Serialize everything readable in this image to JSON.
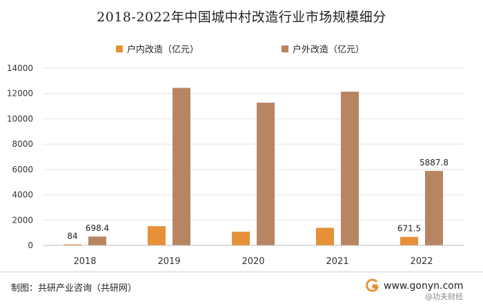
{
  "chart_data": {
    "type": "bar",
    "title": "2018-2022年中国城中村改造行业市场规模细分",
    "categories": [
      "2018",
      "2019",
      "2020",
      "2021",
      "2022"
    ],
    "series": [
      {
        "name": "户内改造（亿元）",
        "color": "#E69138",
        "values": [
          84,
          1520,
          1080,
          1390,
          671.5
        ]
      },
      {
        "name": "户外改造（亿元）",
        "color": "#B88563",
        "values": [
          698.4,
          12450,
          11280,
          12150,
          5887.8
        ]
      }
    ],
    "data_labels": [
      {
        "series": 0,
        "index": 0,
        "text": "84"
      },
      {
        "series": 1,
        "index": 0,
        "text": "698.4"
      },
      {
        "series": 0,
        "index": 4,
        "text": "671.5"
      },
      {
        "series": 1,
        "index": 4,
        "text": "5887.8"
      }
    ],
    "yticks": [
      "0",
      "2000",
      "4000",
      "6000",
      "8000",
      "10000",
      "12000",
      "14000"
    ],
    "ylim": [
      0,
      14000
    ],
    "grid": true,
    "legend_position": "top"
  },
  "footer": {
    "source": "制图：共研产业咨询（共研网）",
    "website": "www.gonyn.com",
    "credit": "@功夫财经",
    "logo_icon": "gonyn-logo-icon"
  }
}
